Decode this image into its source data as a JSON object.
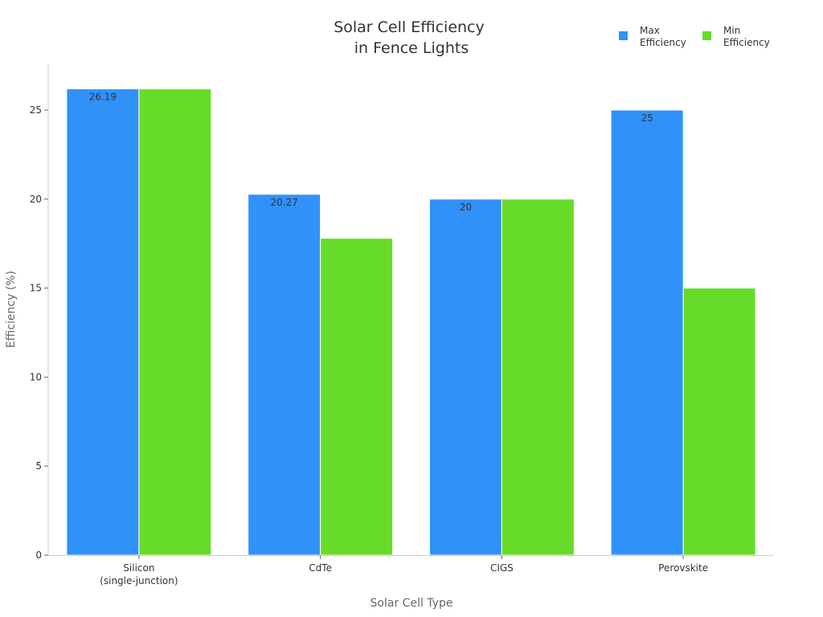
{
  "chart_data": {
    "type": "bar",
    "title": [
      "Solar Cell Efficiency",
      "in Fence Lights"
    ],
    "xlabel": "Solar Cell Type",
    "ylabel": "Efficiency (%)",
    "categories": [
      [
        "Silicon",
        "(single-junction)"
      ],
      [
        "CdTe"
      ],
      [
        "CIGS"
      ],
      [
        "Perovskite"
      ]
    ],
    "series": [
      {
        "name": [
          "Max",
          "Efficiency"
        ],
        "color": "#3092f8",
        "values": [
          26.19,
          20.27,
          20,
          25
        ],
        "labels": [
          "26.19",
          "20.27",
          "20",
          "25"
        ]
      },
      {
        "name": [
          "Min",
          "Efficiency"
        ],
        "color": "#67dc28",
        "values": [
          26.19,
          17.8,
          20,
          15
        ],
        "labels": []
      }
    ],
    "ylim": [
      0,
      27.5
    ],
    "yticks": [
      0,
      5,
      10,
      15,
      20,
      25
    ],
    "legend_position": "top-right",
    "grid": false
  }
}
